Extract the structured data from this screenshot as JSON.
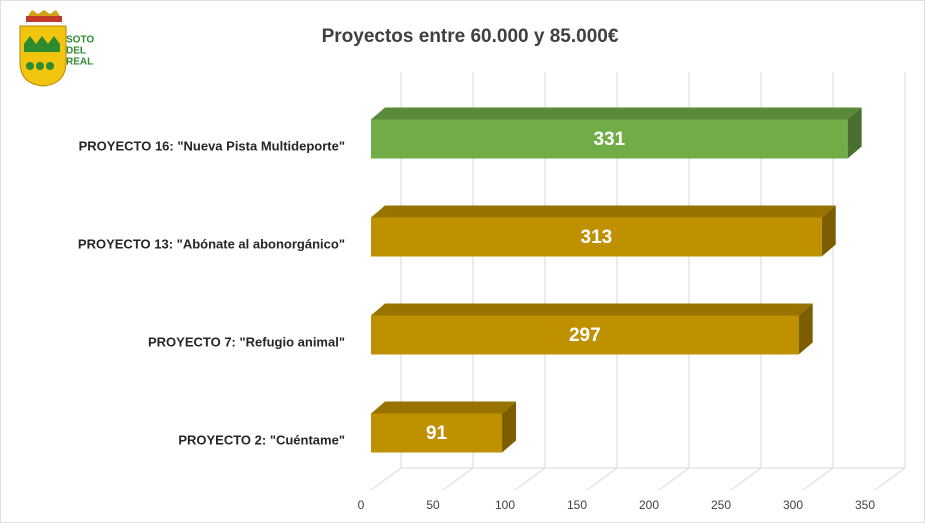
{
  "logo": {
    "lines": [
      "SOTO",
      "DEL",
      "REAL"
    ]
  },
  "chart_data": {
    "type": "bar",
    "orientation": "horizontal",
    "three_d": true,
    "title": "Proyectos  entre 60.000 y 85.000€",
    "categories": [
      "PROYECTO 16: \"Nueva Pista Multideporte\"",
      "PROYECTO 13: \"Abónate al abonorgánico\"",
      "PROYECTO 7: \"Refugio animal\"",
      "PROYECTO 2: \"Cuéntame\""
    ],
    "values": [
      331,
      313,
      297,
      91
    ],
    "colors": [
      "#70ad47",
      "#bf9000",
      "#bf9000",
      "#bf9000"
    ],
    "xlim": [
      0,
      350
    ],
    "xticks": [
      0,
      50,
      100,
      150,
      200,
      250,
      300,
      350
    ],
    "grid": true
  }
}
